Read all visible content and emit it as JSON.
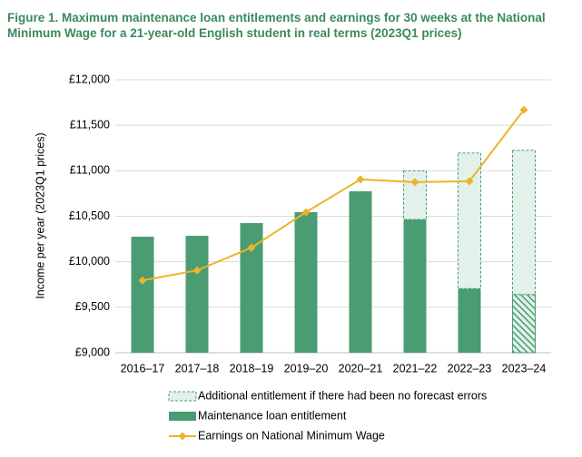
{
  "chart_data": {
    "type": "bar_line",
    "title": [
      "Figure 1. Maximum maintenance loan entitlements and earnings for 30 weeks at the National",
      "Minimum Wage for a 21-year-old English student in real terms (2023Q1 prices)"
    ],
    "ylabel": "Income per year (2023Q1 prices)",
    "categories": [
      "2016–17",
      "2017–18",
      "2018–19",
      "2019–20",
      "2020–21",
      "2021–22",
      "2022–23",
      "2023–24"
    ],
    "series": [
      {
        "name": "Additional entitlement if there had been no forecast errors",
        "type": "stacked_bar",
        "color": "#4a9c72",
        "fill": "#e2f1ea",
        "dashed": true,
        "values": [
          null,
          null,
          null,
          null,
          null,
          535,
          1490,
          1585
        ]
      },
      {
        "name": "Maintenance loan entitlement",
        "type": "bar",
        "color": "#4a9c72",
        "values": [
          10275,
          10285,
          10425,
          10545,
          10775,
          10465,
          9705,
          9640
        ],
        "hatched": [
          false,
          false,
          false,
          false,
          false,
          false,
          false,
          true
        ]
      },
      {
        "name": "Earnings on National Minimum Wage",
        "type": "line",
        "color": "#ebb42a",
        "values": [
          9795,
          9905,
          10155,
          10545,
          10905,
          10875,
          10885,
          11670
        ]
      }
    ],
    "ylim": [
      9000,
      12000
    ],
    "yticks": [
      {
        "value": 9000,
        "label": "£9,000"
      },
      {
        "value": 9500,
        "label": "£9,500"
      },
      {
        "value": 10000,
        "label": "£10,000"
      },
      {
        "value": 10500,
        "label": "£10,500"
      },
      {
        "value": 11000,
        "label": "£11,000"
      },
      {
        "value": 11500,
        "label": "£11,500"
      },
      {
        "value": 12000,
        "label": "£12,000"
      }
    ],
    "grid": true
  }
}
